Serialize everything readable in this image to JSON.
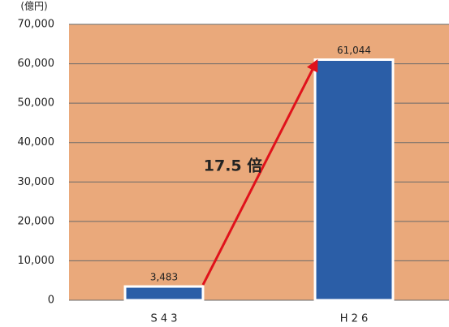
{
  "chart_data": {
    "type": "bar",
    "y_unit_label": "(億円)",
    "categories": [
      "S 4 3",
      "H 2 6"
    ],
    "values": [
      3483,
      61044
    ],
    "value_labels": [
      "3,483",
      "61,044"
    ],
    "color": "#2b5ea7",
    "background": "#eaa97b",
    "annotation": "17.5 倍",
    "ylim": [
      0,
      70000
    ],
    "yticks": [
      0,
      {
        "value": 10000,
        "label": "10,000"
      },
      {
        "value": 20000,
        "label": "20,000"
      },
      {
        "value": 30000,
        "label": "30,000"
      },
      {
        "value": 40000,
        "label": "40,000"
      },
      {
        "value": 50000,
        "label": "50,000"
      },
      {
        "value": 60000,
        "label": "60,000"
      },
      {
        "value": 70000,
        "label": "70,000"
      }
    ],
    "grid": true
  }
}
